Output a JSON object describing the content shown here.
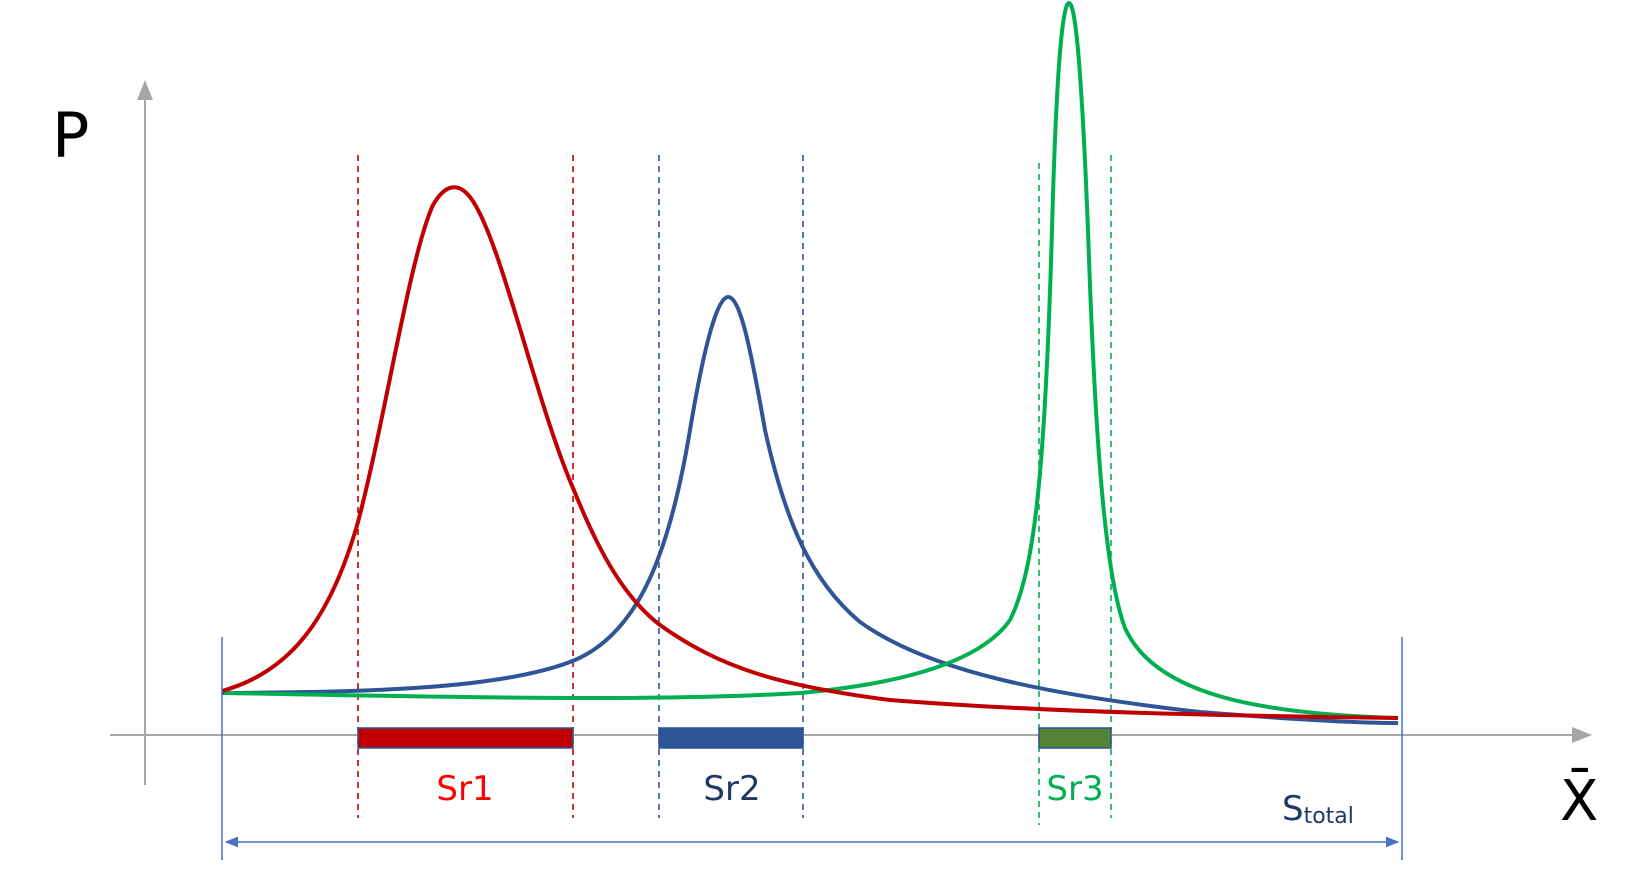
{
  "axes": {
    "y_label": "P",
    "x_label": "X̄",
    "axis_color": "#a6a6a6"
  },
  "curves": [
    {
      "id": "red",
      "color": "#c00000"
    },
    {
      "id": "blue",
      "color": "#2f5597"
    },
    {
      "id": "green",
      "color": "#00b050"
    }
  ],
  "ranges": [
    {
      "label": "Sr1",
      "color": "#ff0000",
      "bar_color": "#c00000",
      "line_color": "#c00000"
    },
    {
      "label": "Sr2",
      "color": "#1f3864",
      "bar_color": "#2f5597",
      "line_color": "#2f5597"
    },
    {
      "label": "Sr3",
      "color": "#00b050",
      "bar_color": "#548235",
      "line_color": "#00b050"
    }
  ],
  "total": {
    "label_main": "S",
    "label_sub": "total",
    "color": "#4472c4",
    "text_color": "#1f3864"
  }
}
